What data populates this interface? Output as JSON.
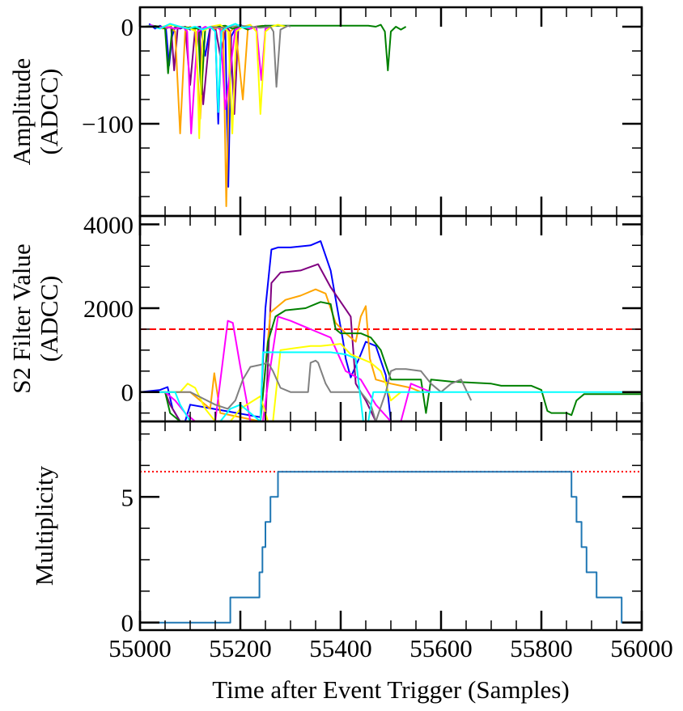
{
  "chart_data": {
    "type": "line",
    "xlabel": "Time after Event Trigger (Samples)",
    "xlim": [
      55000,
      56000
    ],
    "x_ticks": [
      55000,
      55200,
      55400,
      55600,
      55800,
      56000
    ],
    "x_tick_labels": [
      "55000",
      "55200",
      "55400",
      "55600",
      "55800",
      "56000"
    ],
    "colors": {
      "blue": "#0000ff",
      "purple": "#800080",
      "orange": "#ffa500",
      "green": "#008000",
      "magenta": "#ff00ff",
      "yellow": "#ffff00",
      "gray": "#808080",
      "cyan": "#00ffff",
      "tab_blue": "#1f77b4",
      "threshold_red": "#ff0000"
    },
    "panels": [
      {
        "id": "amplitude",
        "ylabel_lines": [
          "Amplitude",
          "(ADCC)"
        ],
        "ylim": [
          -195,
          20
        ],
        "y_ticks": [
          0,
          -100
        ],
        "y_tick_labels": [
          "0",
          "−100"
        ],
        "series": [
          {
            "name": "blue",
            "color": "#0000ff",
            "x": [
              55018,
              55030,
              55040,
              55052,
              55058,
              55064,
              55070,
              55080,
              55090,
              55100,
              55110,
              55120,
              55130,
              55140,
              55150,
              55156,
              55162,
              55170,
              55176,
              55182,
              55192,
              55200,
              55210,
              55220
            ],
            "y": [
              3,
              -2,
              1,
              -3,
              -40,
              -10,
              0,
              -2,
              0,
              -3,
              -1,
              0,
              -30,
              0,
              -2,
              -100,
              -5,
              0,
              -165,
              -10,
              0,
              2,
              -1,
              0
            ]
          },
          {
            "name": "purple",
            "color": "#800080",
            "x": [
              55040,
              55050,
              55062,
              55068,
              55075,
              55090,
              55100,
              55110,
              55118,
              55126,
              55140,
              55150,
              55160,
              55172,
              55180,
              55188,
              55196,
              55205,
              55220,
              55235,
              55250,
              55260
            ],
            "y": [
              0,
              -2,
              0,
              -45,
              -2,
              0,
              -60,
              -2,
              0,
              -80,
              -2,
              0,
              -30,
              0,
              -5,
              -90,
              -2,
              0,
              -2,
              0,
              1,
              0
            ]
          },
          {
            "name": "orange",
            "color": "#ffa500",
            "x": [
              55030,
              55045,
              55060,
              55070,
              55080,
              55090,
              55100,
              55110,
              55120,
              55130,
              55140,
              55150,
              55158,
              55166,
              55172,
              55180,
              55190,
              55205,
              55215,
              55230,
              55245
            ],
            "y": [
              1,
              -2,
              0,
              -5,
              -110,
              -5,
              0,
              -3,
              -95,
              -2,
              0,
              -2,
              0,
              -5,
              -185,
              -5,
              0,
              -75,
              -2,
              0,
              1
            ]
          },
          {
            "name": "green",
            "color": "#008000",
            "x": [
              55010,
              55025,
              55040,
              55050,
              55056,
              55064,
              55080,
              55100,
              55116,
              55122,
              55130,
              55150,
              55170,
              55185,
              55200,
              55215,
              55230,
              55250,
              55455,
              55470,
              55480,
              55488,
              55494,
              55500,
              55510,
              55520,
              55530
            ],
            "y": [
              0,
              1,
              0,
              -2,
              -48,
              -2,
              0,
              -1,
              -2,
              -70,
              -2,
              0,
              1,
              -2,
              0,
              -3,
              0,
              1,
              1,
              0,
              2,
              -5,
              -45,
              -5,
              0,
              -3,
              0
            ]
          },
          {
            "name": "magenta",
            "color": "#ff00ff",
            "x": [
              55020,
              55035,
              55050,
              55070,
              55085,
              55094,
              55102,
              55115,
              55130,
              55140,
              55152,
              55160,
              55170,
              55190,
              55205,
              55220,
              55232,
              55242,
              55250,
              55260
            ],
            "y": [
              2,
              -1,
              0,
              -2,
              0,
              -5,
              -110,
              -5,
              0,
              -2,
              0,
              -3,
              -85,
              -3,
              0,
              -2,
              0,
              -55,
              -2,
              0
            ]
          },
          {
            "name": "yellow",
            "color": "#ffff00",
            "x": [
              55045,
              55060,
              55080,
              55100,
              55112,
              55118,
              55125,
              55140,
              55160,
              55176,
              55184,
              55192,
              55205,
              55220,
              55232,
              55240,
              55250,
              55262,
              55275,
              55290
            ],
            "y": [
              0,
              2,
              0,
              -2,
              -5,
              -115,
              -5,
              0,
              2,
              -5,
              -110,
              -5,
              0,
              2,
              -5,
              -90,
              -5,
              0,
              2,
              0
            ]
          },
          {
            "name": "gray",
            "color": "#808080",
            "x": [
              55140,
              55160,
              55180,
              55200,
              55220,
              55240,
              55260,
              55266,
              55272,
              55280,
              55295,
              55300
            ],
            "y": [
              0,
              -1,
              0,
              1,
              0,
              -1,
              0,
              -5,
              -62,
              -3,
              1,
              0
            ]
          },
          {
            "name": "cyan",
            "color": "#00ffff",
            "x": [
              55020,
              55040,
              55060,
              55080,
              55095,
              55110,
              55125,
              55140,
              55150,
              55156,
              55162,
              55175,
              55190,
              55205,
              55220
            ],
            "y": [
              1,
              -2,
              3,
              0,
              -2,
              0,
              -3,
              0,
              -5,
              -88,
              -5,
              0,
              3,
              -1,
              0
            ]
          }
        ]
      },
      {
        "id": "s2filter",
        "ylabel_lines": [
          "S2 Filter Value",
          "(ADCC)"
        ],
        "ylim": [
          -700,
          4200
        ],
        "y_ticks": [
          0,
          2000,
          4000
        ],
        "y_tick_labels": [
          "0",
          "2000",
          "4000"
        ],
        "threshold": {
          "value": 1500,
          "color": "#ff0000",
          "style": "dashed"
        },
        "series": [
          {
            "name": "blue",
            "color": "#0000ff",
            "x": [
              55000,
              55040,
              55055,
              55065,
              55080,
              55090,
              55100,
              55240,
              55250,
              55262,
              55275,
              55300,
              55340,
              55360,
              55380,
              55405,
              55410,
              55420,
              55440,
              55450,
              55470,
              55490,
              55500
            ],
            "y": [
              0,
              50,
              120,
              -400,
              -700,
              -700,
              -300,
              -600,
              2000,
              3400,
              3450,
              3450,
              3500,
              3600,
              2900,
              1200,
              800,
              350,
              900,
              1200,
              1100,
              400,
              -700
            ]
          },
          {
            "name": "purple",
            "color": "#800080",
            "x": [
              55000,
              55050,
              55060,
              55080,
              55100,
              55250,
              55262,
              55280,
              55320,
              55355,
              55380,
              55420,
              55430,
              55450,
              55470,
              55490
            ],
            "y": [
              0,
              0,
              -300,
              -700,
              -700,
              -700,
              2600,
              2850,
              2900,
              3050,
              2500,
              1800,
              200,
              -200,
              -700,
              -700
            ]
          },
          {
            "name": "orange",
            "color": "#ffa500",
            "x": [
              55000,
              55100,
              55140,
              55148,
              55160,
              55240,
              55260,
              55290,
              55320,
              55350,
              55370,
              55390,
              55410,
              55430,
              55440,
              55450,
              55458,
              55470,
              55500,
              55520,
              55540,
              55560,
              55580
            ],
            "y": [
              0,
              0,
              -400,
              450,
              -500,
              -700,
              1900,
              2200,
              2300,
              2450,
              2350,
              1650,
              1400,
              1200,
              1800,
              2050,
              800,
              300,
              200,
              150,
              100,
              0,
              0
            ]
          },
          {
            "name": "green",
            "color": "#008000",
            "x": [
              55000,
              55050,
              55060,
              55080,
              55240,
              55255,
              55270,
              55290,
              55330,
              55360,
              55380,
              55390,
              55400,
              55440,
              55460,
              55480,
              55500,
              55560,
              55570,
              55580,
              55620,
              55700,
              55720,
              55780,
              55800,
              55812,
              55820,
              55850,
              55860,
              55870,
              55885,
              56000
            ],
            "y": [
              0,
              0,
              -500,
              -700,
              -700,
              1200,
              1800,
              1950,
              2000,
              2150,
              2100,
              1500,
              1400,
              1400,
              1300,
              1000,
              300,
              300,
              -500,
              300,
              250,
              200,
              150,
              150,
              50,
              -450,
              -500,
              -500,
              -550,
              -200,
              -50,
              -50
            ]
          },
          {
            "name": "magenta",
            "color": "#ff00ff",
            "x": [
              55000,
              55050,
              55070,
              55090,
              55110,
              55130,
              55150,
              55175,
              55185,
              55200,
              55220,
              55245,
              55255,
              55275,
              55300,
              55340,
              55380,
              55410,
              55440,
              55470,
              55500,
              55520,
              55540,
              55560,
              55580
            ],
            "y": [
              0,
              0,
              -200,
              -500,
              -700,
              -700,
              -700,
              1700,
              1650,
              600,
              -700,
              -700,
              200,
              1800,
              1700,
              1500,
              1300,
              500,
              300,
              -300,
              -700,
              -700,
              200,
              100,
              0
            ]
          },
          {
            "name": "yellow",
            "color": "#ffff00",
            "x": [
              55000,
              55080,
              55095,
              55110,
              55130,
              55150,
              55180,
              55200,
              55240,
              55255,
              55265,
              55280,
              55310,
              55340,
              55360,
              55400,
              55420,
              55440,
              55460,
              55480,
              55490,
              55500,
              55520
            ],
            "y": [
              0,
              0,
              200,
              100,
              -400,
              -700,
              -700,
              -400,
              -100,
              -700,
              -700,
              1000,
              1050,
              1100,
              1100,
              1150,
              900,
              800,
              700,
              500,
              200,
              -200,
              0
            ]
          },
          {
            "name": "gray",
            "color": "#808080",
            "x": [
              55000,
              55100,
              55150,
              55175,
              55190,
              55205,
              55220,
              55240,
              55255,
              55265,
              55280,
              55300,
              55310,
              55320,
              55335,
              55340,
              55350,
              55355,
              55370,
              55380,
              55400,
              55420,
              55440,
              55460,
              55470,
              55490,
              55500,
              55510,
              55530,
              55560,
              55580,
              55600,
              55620,
              55640,
              55660
            ],
            "y": [
              0,
              0,
              -300,
              -400,
              -200,
              300,
              600,
              650,
              700,
              500,
              100,
              0,
              0,
              0,
              0,
              700,
              750,
              700,
              200,
              0,
              0,
              0,
              0,
              -300,
              -700,
              0,
              500,
              550,
              550,
              500,
              200,
              0,
              200,
              300,
              -200
            ]
          },
          {
            "name": "cyan",
            "color": "#00ffff",
            "x": [
              55000,
              55040,
              55060,
              55070,
              55080,
              55100,
              55140,
              55160,
              55180,
              55200,
              55220,
              55240,
              55245,
              55260,
              55300,
              55340,
              55380,
              55410,
              55430,
              55445,
              55455,
              55465,
              55470,
              55500,
              55520,
              55540,
              55560,
              55600,
              55700,
              55800,
              56000
            ],
            "y": [
              0,
              0,
              0,
              0,
              -300,
              -700,
              -700,
              -700,
              -400,
              -300,
              -500,
              -700,
              950,
              950,
              950,
              950,
              950,
              900,
              800,
              -700,
              -700,
              0,
              0,
              0,
              0,
              0,
              0,
              0,
              0,
              0,
              0
            ]
          }
        ]
      },
      {
        "id": "multiplicity",
        "ylabel_lines": [
          "Multiplicity"
        ],
        "ylim": [
          -0.3,
          8.0
        ],
        "y_ticks": [
          0,
          5
        ],
        "y_tick_labels": [
          "0",
          "5"
        ],
        "threshold": {
          "value": 6,
          "color": "#ff0000",
          "style": "dotted"
        },
        "series": [
          {
            "name": "multiplicity",
            "color": "#1f77b4",
            "step": true,
            "x": [
              55000,
              55180,
              55238,
              55244,
              55250,
              55260,
              55275,
              55860,
              55870,
              55880,
              55890,
              55910,
              55960,
              56000
            ],
            "y": [
              0,
              1,
              2,
              3,
              4,
              5,
              6,
              5,
              4,
              3,
              2,
              1,
              0,
              0
            ]
          }
        ]
      }
    ]
  }
}
